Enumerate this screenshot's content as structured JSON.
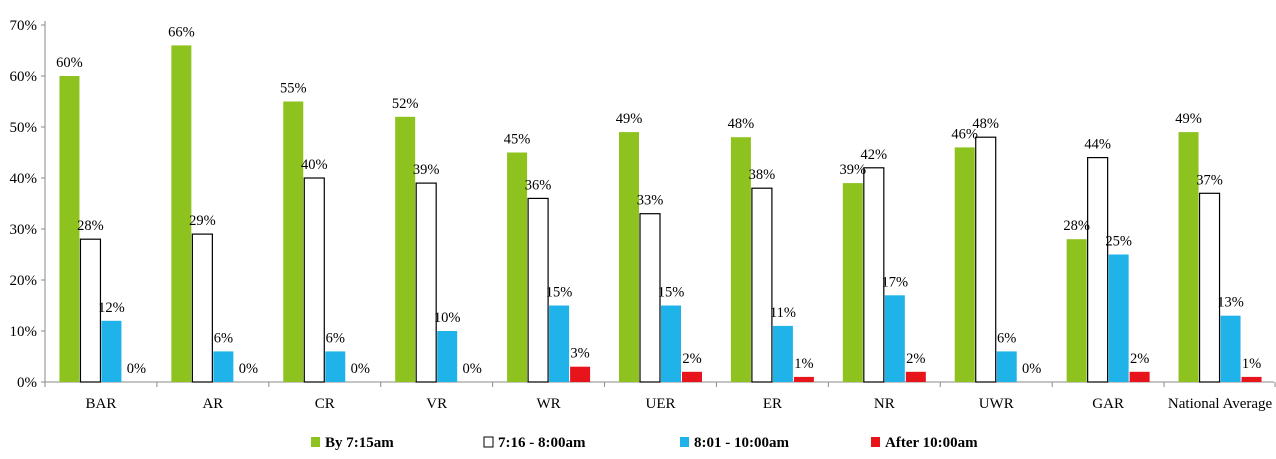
{
  "chart_data": {
    "type": "bar",
    "title": "",
    "xlabel": "",
    "ylabel": "",
    "ylim": [
      0,
      70
    ],
    "ytick_step": 10,
    "ytick_format": "percent",
    "grid": false,
    "legend_position": "bottom",
    "categories": [
      "BAR",
      "AR",
      "CR",
      "VR",
      "WR",
      "UER",
      "ER",
      "NR",
      "UWR",
      "GAR",
      "National Average"
    ],
    "series": [
      {
        "name": "By 7:15am",
        "color": "#8dc21f",
        "fill": true,
        "values": [
          60,
          66,
          55,
          52,
          45,
          49,
          48,
          39,
          46,
          28,
          49
        ]
      },
      {
        "name": "7:16 - 8:00am",
        "color": "#ffffff",
        "fill": false,
        "values": [
          28,
          29,
          40,
          39,
          36,
          33,
          38,
          42,
          48,
          44,
          37
        ]
      },
      {
        "name": "8:01 - 10:00am",
        "color": "#1fb3ea",
        "fill": true,
        "values": [
          12,
          6,
          6,
          10,
          15,
          15,
          11,
          17,
          6,
          25,
          13
        ]
      },
      {
        "name": "After 10:00am",
        "color": "#e8141b",
        "fill": true,
        "values": [
          0,
          0,
          0,
          0,
          3,
          2,
          1,
          2,
          0,
          2,
          1
        ]
      }
    ]
  }
}
